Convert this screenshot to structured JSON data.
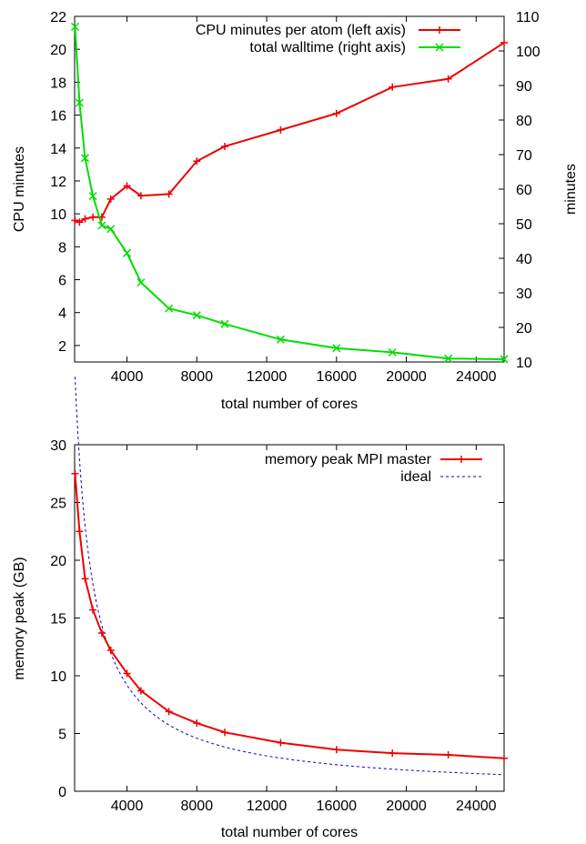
{
  "chart_data": [
    {
      "type": "line",
      "xlabel": "total number of cores",
      "ylabel": "CPU minutes",
      "y2label": "minutes",
      "xlim": [
        1000,
        25600
      ],
      "ylim": [
        1,
        22
      ],
      "y2lim": [
        10,
        110
      ],
      "xticks": [
        "4000",
        "8000",
        "12000",
        "16000",
        "20000",
        "24000"
      ],
      "yticks": [
        "2",
        "4",
        "6",
        "8",
        "10",
        "12",
        "14",
        "16",
        "18",
        "20",
        "22"
      ],
      "y2ticks": [
        "10",
        "20",
        "30",
        "40",
        "50",
        "60",
        "70",
        "80",
        "90",
        "100",
        "110"
      ],
      "legend_position": "top-right",
      "series": [
        {
          "name": "CPU minutes per atom (left axis)",
          "axis": "left",
          "color": "#ee0000",
          "marker": "plus",
          "x": [
            1024,
            1280,
            1600,
            2048,
            2560,
            3072,
            4000,
            4800,
            6400,
            8000,
            9600,
            12800,
            16000,
            19200,
            22400,
            25600
          ],
          "y": [
            9.6,
            9.5,
            9.7,
            9.8,
            9.8,
            10.9,
            11.7,
            11.1,
            11.2,
            13.2,
            14.1,
            15.1,
            16.1,
            17.7,
            18.2,
            20.4
          ]
        },
        {
          "name": "total walltime (right axis)",
          "axis": "right",
          "color": "#00dd00",
          "marker": "cross",
          "x": [
            1024,
            1280,
            1600,
            2048,
            2560,
            3072,
            4000,
            4800,
            6400,
            8000,
            9600,
            12800,
            16000,
            19200,
            22400,
            25600
          ],
          "y": [
            107,
            85,
            69,
            58,
            49.5,
            48.5,
            41.5,
            33,
            25.5,
            23.5,
            21,
            16.5,
            14,
            12.8,
            11,
            10.8
          ]
        }
      ]
    },
    {
      "type": "line",
      "xlabel": "total number of cores",
      "ylabel": "memory peak (GB)",
      "xlim": [
        1000,
        25600
      ],
      "ylim": [
        0,
        30
      ],
      "xticks": [
        "4000",
        "8000",
        "12000",
        "16000",
        "20000",
        "24000"
      ],
      "yticks": [
        "0",
        "5",
        "10",
        "15",
        "20",
        "25",
        "30"
      ],
      "legend_position": "top-right",
      "series": [
        {
          "name": "memory peak MPI master",
          "color": "#ee0000",
          "marker": "plus",
          "style": "solid",
          "x": [
            1024,
            1280,
            1600,
            2048,
            2560,
            3072,
            4000,
            4800,
            6400,
            8000,
            9600,
            12800,
            16000,
            19200,
            22400,
            25600
          ],
          "y": [
            27.5,
            22.5,
            18.4,
            15.7,
            13.7,
            12.2,
            10.2,
            8.7,
            6.9,
            5.9,
            5.1,
            4.2,
            3.6,
            3.3,
            3.15,
            2.85
          ]
        },
        {
          "name": "ideal",
          "color": "#0000cc",
          "style": "dotted",
          "formula_k": 36750,
          "x_start": 1024,
          "x_end": 25600
        }
      ]
    }
  ]
}
